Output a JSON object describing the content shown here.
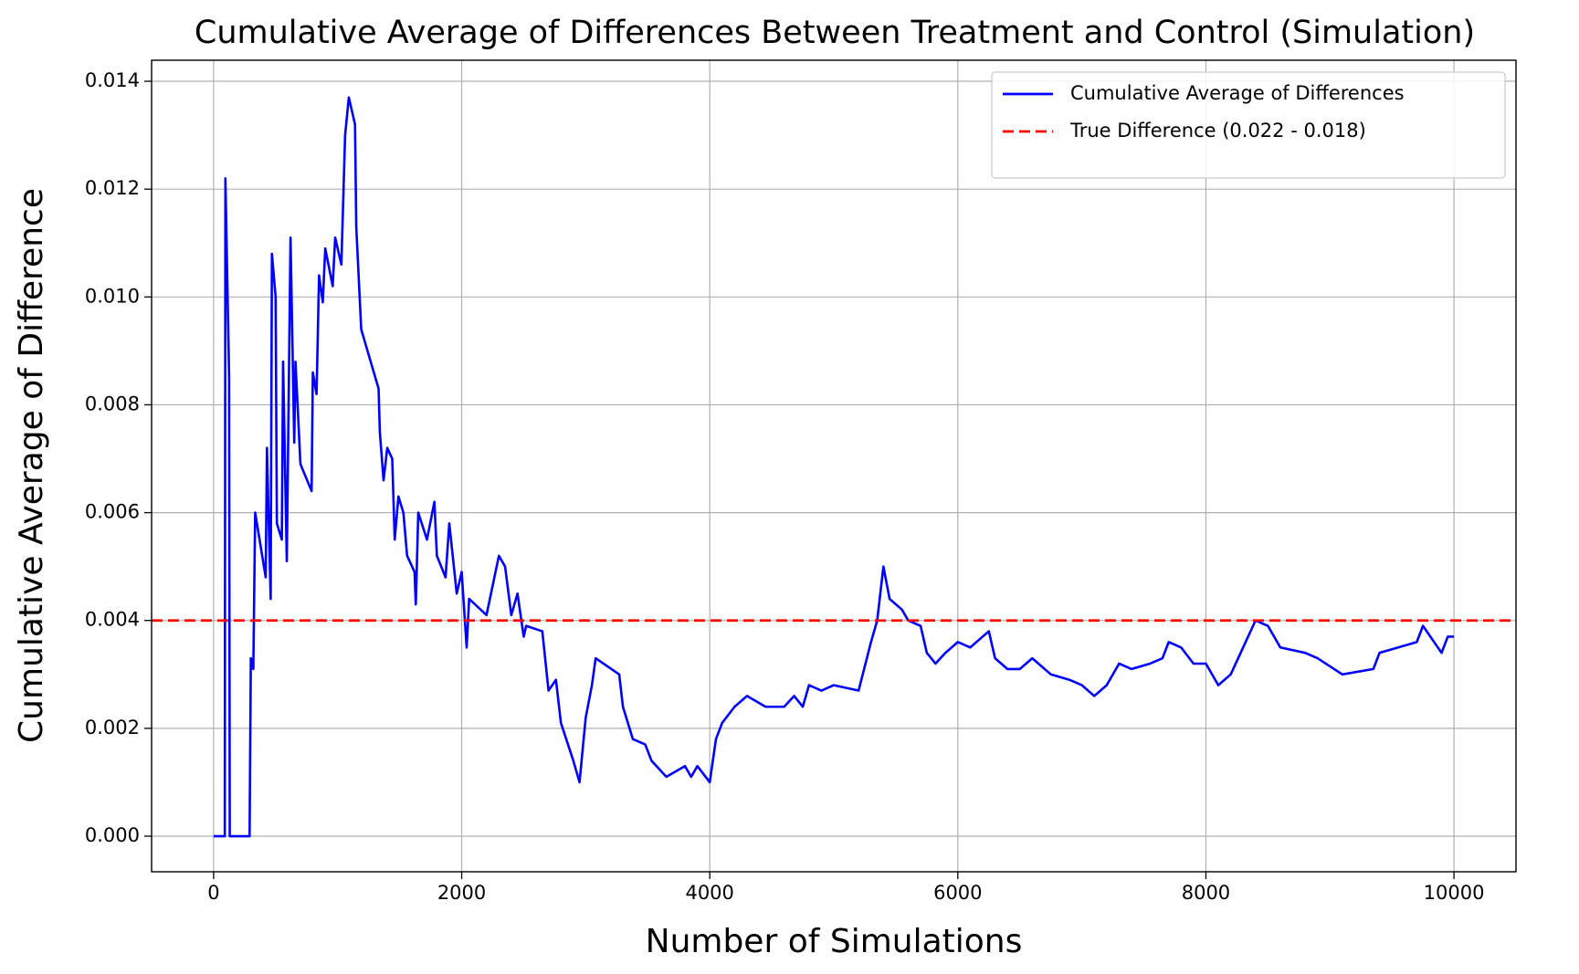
{
  "chart_data": {
    "type": "line",
    "title": "Cumulative Average of Differences Between Treatment and Control (Simulation)",
    "xlabel": "Number of Simulations",
    "ylabel": "Cumulative Average of Difference",
    "xlim": [
      -500,
      10500
    ],
    "ylim": [
      -0.00066,
      0.01439
    ],
    "xticks": [
      0,
      2000,
      4000,
      6000,
      8000,
      10000
    ],
    "yticks": [
      {
        "value": 0,
        "label": "0.000"
      },
      {
        "value": 0.002,
        "label": "0.002"
      },
      {
        "value": 0.004,
        "label": "0.004"
      },
      {
        "value": 0.006,
        "label": "0.006"
      },
      {
        "value": 0.008,
        "label": "0.008"
      },
      {
        "value": 0.01,
        "label": "0.010"
      },
      {
        "value": 0.012,
        "label": "0.012"
      },
      {
        "value": 0.014,
        "label": "0.014"
      }
    ],
    "grid": true,
    "legend": "upper right",
    "series": [
      {
        "name": "Cumulative Average of Differences",
        "color": "#0000ff",
        "style": "solid",
        "x": [
          0,
          90,
          95,
          125,
          130,
          290,
          300,
          320,
          335,
          420,
          430,
          460,
          470,
          500,
          510,
          550,
          560,
          590,
          620,
          650,
          660,
          700,
          790,
          800,
          830,
          850,
          880,
          900,
          960,
          980,
          1030,
          1060,
          1090,
          1140,
          1150,
          1190,
          1330,
          1340,
          1370,
          1400,
          1440,
          1460,
          1490,
          1530,
          1560,
          1620,
          1630,
          1650,
          1720,
          1780,
          1800,
          1870,
          1900,
          1960,
          2000,
          2040,
          2060,
          2200,
          2300,
          2350,
          2400,
          2450,
          2500,
          2520,
          2650,
          2700,
          2760,
          2800,
          2900,
          2950,
          3000,
          3050,
          3080,
          3270,
          3300,
          3380,
          3480,
          3530,
          3650,
          3800,
          3850,
          3900,
          4000,
          4050,
          4100,
          4200,
          4300,
          4450,
          4600,
          4680,
          4750,
          4800,
          4900,
          5000,
          5200,
          5300,
          5350,
          5400,
          5450,
          5500,
          5550,
          5600,
          5700,
          5750,
          5820,
          5900,
          6000,
          6100,
          6200,
          6250,
          6300,
          6400,
          6500,
          6600,
          6750,
          6900,
          7000,
          7100,
          7200,
          7300,
          7400,
          7550,
          7650,
          7700,
          7800,
          7900,
          8000,
          8100,
          8200,
          8300,
          8400,
          8500,
          8600,
          8800,
          8900,
          9100,
          9350,
          9400,
          9550,
          9700,
          9750,
          9900,
          9950,
          10000
        ],
        "values": [
          0,
          0,
          0.0122,
          0.0085,
          0,
          0,
          0.0033,
          0.0031,
          0.006,
          0.0048,
          0.0072,
          0.0044,
          0.0108,
          0.01,
          0.0058,
          0.0055,
          0.0088,
          0.0051,
          0.0111,
          0.0073,
          0.0088,
          0.0069,
          0.0064,
          0.0086,
          0.0082,
          0.0104,
          0.0099,
          0.0109,
          0.0102,
          0.0111,
          0.0106,
          0.013,
          0.0137,
          0.0132,
          0.0113,
          0.0094,
          0.0083,
          0.0075,
          0.0066,
          0.0072,
          0.007,
          0.0055,
          0.0063,
          0.006,
          0.0052,
          0.0049,
          0.0043,
          0.006,
          0.0055,
          0.0062,
          0.0052,
          0.0048,
          0.0058,
          0.0045,
          0.0049,
          0.0035,
          0.0044,
          0.0041,
          0.0052,
          0.005,
          0.0041,
          0.0045,
          0.0037,
          0.0039,
          0.0038,
          0.0027,
          0.0029,
          0.0021,
          0.0014,
          0.001,
          0.0022,
          0.0028,
          0.0033,
          0.003,
          0.0024,
          0.0018,
          0.0017,
          0.0014,
          0.0011,
          0.0013,
          0.0011,
          0.0013,
          0.001,
          0.0018,
          0.0021,
          0.0024,
          0.0026,
          0.0024,
          0.0024,
          0.0026,
          0.0024,
          0.0028,
          0.0027,
          0.0028,
          0.0027,
          0.0036,
          0.004,
          0.005,
          0.0044,
          0.0043,
          0.0042,
          0.004,
          0.0039,
          0.0034,
          0.0032,
          0.0034,
          0.0036,
          0.0035,
          0.0037,
          0.0038,
          0.0033,
          0.0031,
          0.0031,
          0.0033,
          0.003,
          0.0029,
          0.0028,
          0.0026,
          0.0028,
          0.0032,
          0.0031,
          0.0032,
          0.0033,
          0.0036,
          0.0035,
          0.0032,
          0.0032,
          0.0028,
          0.003,
          0.0035,
          0.004,
          0.0039,
          0.0035,
          0.0034,
          0.0033,
          0.003,
          0.0031,
          0.0034,
          0.0035,
          0.0036,
          0.0039,
          0.0034,
          0.0037,
          0.0037
        ]
      },
      {
        "name": "True Difference (0.022 - 0.018)",
        "color": "#ff0000",
        "style": "dashed",
        "kind": "hline",
        "values": [
          0.004
        ]
      }
    ]
  }
}
